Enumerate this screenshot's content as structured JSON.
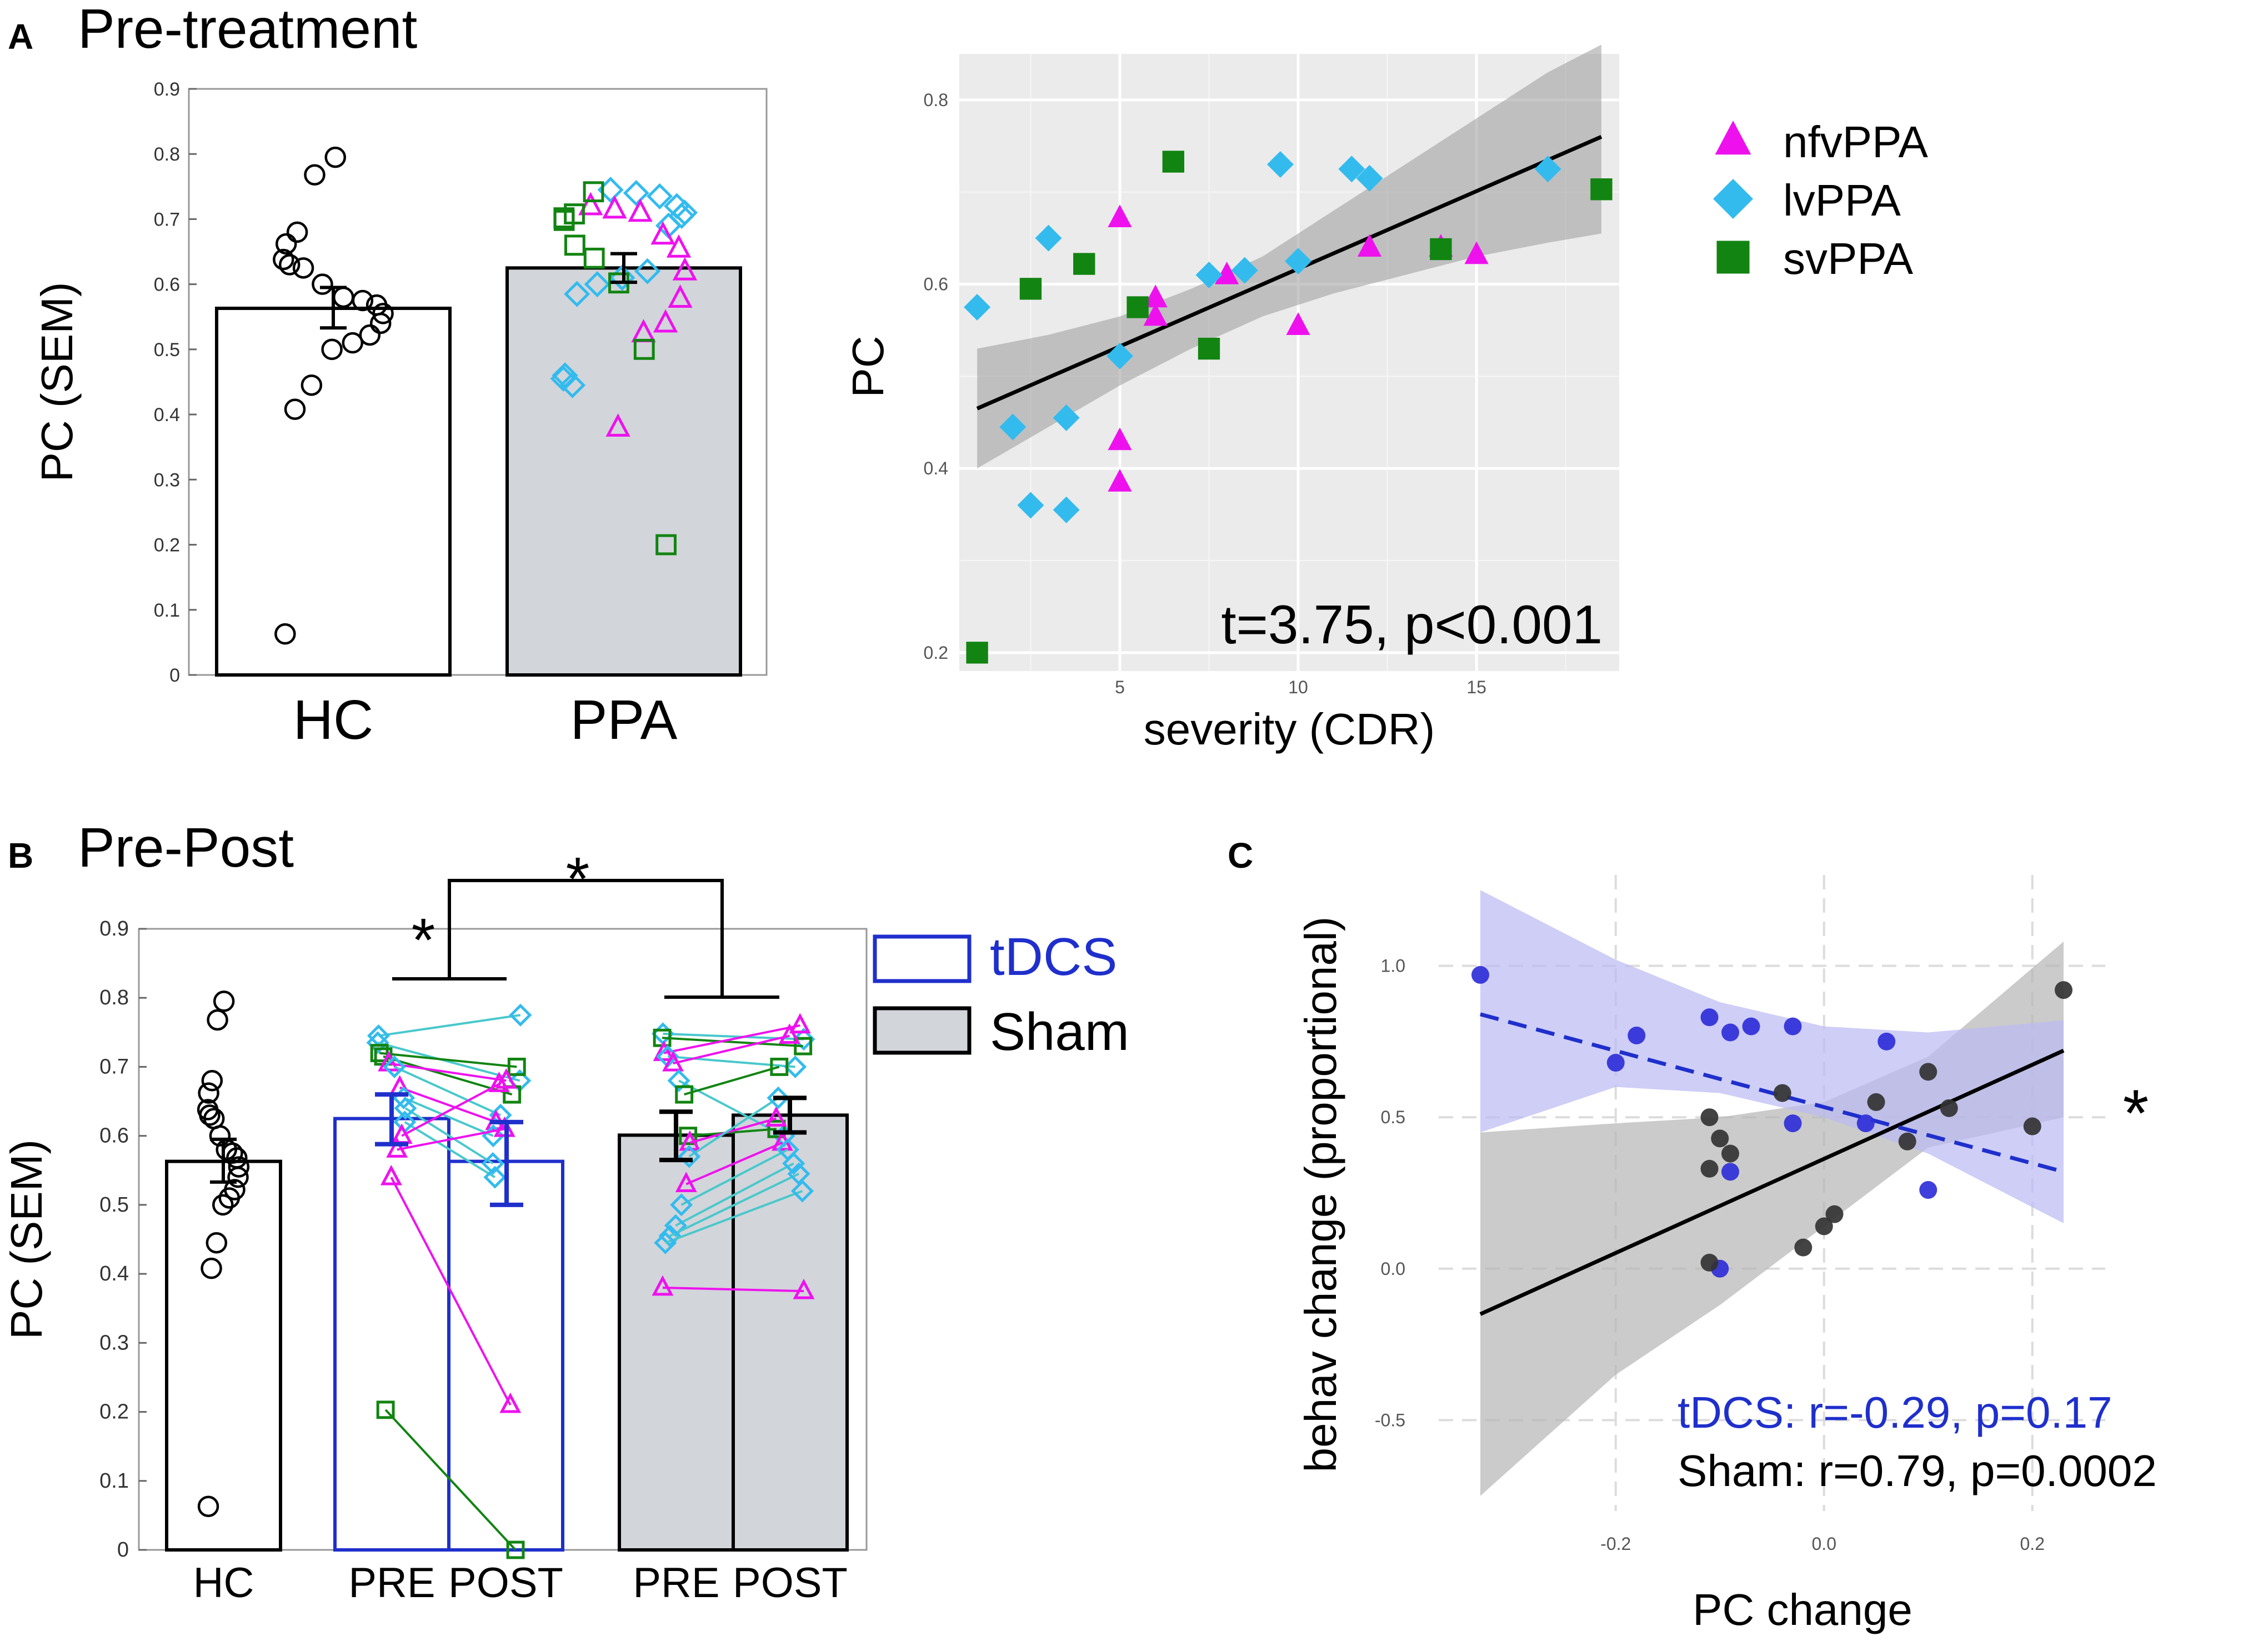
{
  "colors": {
    "nfv": "#ee11ee",
    "lv": "#33bbee",
    "sv": "#128412",
    "tdcs": "#1f2fcc",
    "sham_fill": "#d2d5da",
    "plot_bg": "#ebebeb",
    "line_cyan": "#48c8cc",
    "c_tdcs_dot": "#2f2fd8",
    "c_sham_dot": "#333333",
    "c_tdcs_band": "#b9b9f3",
    "c_sham_band": "#b5b5b5"
  },
  "panel_labels": {
    "a": "A",
    "b": "B",
    "c": "C"
  },
  "titles": {
    "a": "Pre-treatment",
    "b": "Pre-Post"
  },
  "chart_data": [
    {
      "id": "panelA_bar",
      "type": "bar",
      "ylabel": "PC (SEM)",
      "ylim": [
        0,
        0.9
      ],
      "yticks": [
        "0",
        "0.1",
        "0.2",
        "0.3",
        "0.4",
        "0.5",
        "0.6",
        "0.7",
        "0.8",
        "0.9"
      ],
      "categories": [
        "HC",
        "PPA"
      ],
      "values": [
        0.563,
        0.625
      ],
      "errors": [
        [
          0.533,
          0.595
        ],
        [
          0.603,
          0.647
        ]
      ],
      "hc_points": [
        0.795,
        0.768,
        0.68,
        0.662,
        0.638,
        0.63,
        0.625,
        0.6,
        0.58,
        0.575,
        0.568,
        0.555,
        0.54,
        0.522,
        0.51,
        0.5,
        0.445,
        0.408,
        0.063
      ],
      "ppa_points": {
        "nfv": [
          0.72,
          0.715,
          0.71,
          0.675,
          0.655,
          0.62,
          0.578,
          0.54,
          0.525,
          0.38
        ],
        "lv": [
          0.745,
          0.74,
          0.735,
          0.72,
          0.71,
          0.705,
          0.69,
          0.62,
          0.61,
          0.6,
          0.585,
          0.46,
          0.455,
          0.445
        ],
        "sv": [
          0.742,
          0.708,
          0.702,
          0.698,
          0.66,
          0.64,
          0.602,
          0.5,
          0.2
        ]
      }
    },
    {
      "id": "panelA_scatter",
      "type": "scatter",
      "xlabel": "severity (CDR)",
      "ylabel": "PC",
      "xlim": [
        0.5,
        19
      ],
      "ylim": [
        0.18,
        0.85
      ],
      "xticks": [
        "5",
        "10",
        "15"
      ],
      "yticks": [
        "0.2",
        "0.4",
        "0.6",
        "0.8"
      ],
      "annotation": "t=3.75, p<0.001",
      "legend": [
        "nfvPPA",
        "lvPPA",
        "svPPA"
      ],
      "fit": {
        "x": [
          1,
          18.5
        ],
        "y": [
          0.465,
          0.76
        ]
      },
      "band": {
        "x": [
          1,
          3,
          5,
          7,
          9,
          11,
          13,
          15,
          17,
          18.5
        ],
        "lo": [
          0.4,
          0.445,
          0.49,
          0.53,
          0.565,
          0.59,
          0.61,
          0.63,
          0.645,
          0.655
        ],
        "hi": [
          0.53,
          0.545,
          0.565,
          0.595,
          0.63,
          0.68,
          0.73,
          0.78,
          0.83,
          0.86
        ]
      },
      "series": [
        {
          "name": "nfvPPA",
          "x": [
            5,
            6,
            6,
            8,
            10,
            12,
            14,
            15,
            5,
            5
          ],
          "y": [
            0.672,
            0.585,
            0.565,
            0.61,
            0.555,
            0.64,
            0.64,
            0.632,
            0.43,
            0.385
          ]
        },
        {
          "name": "lvPPA",
          "x": [
            1,
            2,
            3,
            3.5,
            5,
            7.5,
            8.5,
            10,
            9.5,
            11.5,
            12,
            17,
            2.5,
            3.5
          ],
          "y": [
            0.575,
            0.445,
            0.65,
            0.455,
            0.522,
            0.61,
            0.615,
            0.625,
            0.73,
            0.725,
            0.715,
            0.725,
            0.36,
            0.355
          ]
        },
        {
          "name": "svPPA",
          "x": [
            1,
            2.5,
            4,
            5.5,
            6.5,
            7.5,
            14,
            18.5
          ],
          "y": [
            0.2,
            0.595,
            0.622,
            0.575,
            0.733,
            0.53,
            0.638,
            0.703
          ]
        }
      ]
    },
    {
      "id": "panelB_bar",
      "type": "bar",
      "ylabel": "PC (SEM)",
      "ylim": [
        0,
        0.9
      ],
      "yticks": [
        "0",
        "0.1",
        "0.2",
        "0.3",
        "0.4",
        "0.5",
        "0.6",
        "0.7",
        "0.8",
        "0.9"
      ],
      "categories": [
        "HC",
        "PRE",
        "POST",
        "PRE",
        "POST"
      ],
      "values": [
        0.563,
        0.625,
        0.563,
        0.601,
        0.63
      ],
      "errors": [
        [
          0.533,
          0.595
        ],
        [
          0.588,
          0.66
        ],
        [
          0.5,
          0.62
        ],
        [
          0.565,
          0.635
        ],
        [
          0.605,
          0.655
        ]
      ],
      "legend": [
        "tDCS",
        "Sham"
      ],
      "significance": "*",
      "hc_points": [
        0.795,
        0.768,
        0.68,
        0.662,
        0.638,
        0.63,
        0.625,
        0.6,
        0.58,
        0.575,
        0.568,
        0.555,
        0.54,
        0.522,
        0.51,
        0.5,
        0.445,
        0.408,
        0.063
      ],
      "tdcs_pairs": [
        {
          "g": "lv",
          "pre": 0.745,
          "post": 0.775
        },
        {
          "g": "lv",
          "pre": 0.735,
          "post": 0.68
        },
        {
          "g": "sv",
          "pre": 0.72,
          "post": 0.7
        },
        {
          "g": "sv",
          "pre": 0.715,
          "post": 0.66
        },
        {
          "g": "nfv",
          "pre": 0.705,
          "post": 0.68
        },
        {
          "g": "lv",
          "pre": 0.7,
          "post": 0.63
        },
        {
          "g": "nfv",
          "pre": 0.67,
          "post": 0.62
        },
        {
          "g": "lv",
          "pre": 0.655,
          "post": 0.6
        },
        {
          "g": "lv",
          "pre": 0.64,
          "post": 0.56
        },
        {
          "g": "lv",
          "pre": 0.62,
          "post": 0.54
        },
        {
          "g": "nfv",
          "pre": 0.6,
          "post": 0.675
        },
        {
          "g": "nfv",
          "pre": 0.58,
          "post": 0.61
        },
        {
          "g": "nfv",
          "pre": 0.54,
          "post": 0.21
        },
        {
          "g": "sv",
          "pre": 0.203,
          "post": 0.0
        }
      ],
      "sham_pairs": [
        {
          "g": "lv",
          "pre": 0.748,
          "post": 0.74
        },
        {
          "g": "sv",
          "pre": 0.742,
          "post": 0.73
        },
        {
          "g": "nfv",
          "pre": 0.72,
          "post": 0.76
        },
        {
          "g": "lv",
          "pre": 0.715,
          "post": 0.7
        },
        {
          "g": "nfv",
          "pre": 0.705,
          "post": 0.745
        },
        {
          "g": "lv",
          "pre": 0.68,
          "post": 0.6
        },
        {
          "g": "sv",
          "pre": 0.66,
          "post": 0.7
        },
        {
          "g": "sv",
          "pre": 0.6,
          "post": 0.61
        },
        {
          "g": "nfv",
          "pre": 0.59,
          "post": 0.625
        },
        {
          "g": "lv",
          "pre": 0.57,
          "post": 0.655
        },
        {
          "g": "nfv",
          "pre": 0.53,
          "post": 0.59
        },
        {
          "g": "lv",
          "pre": 0.5,
          "post": 0.58
        },
        {
          "g": "lv",
          "pre": 0.47,
          "post": 0.56
        },
        {
          "g": "lv",
          "pre": 0.455,
          "post": 0.545
        },
        {
          "g": "lv",
          "pre": 0.445,
          "post": 0.52
        },
        {
          "g": "nfv",
          "pre": 0.38,
          "post": 0.375
        }
      ]
    },
    {
      "id": "panelC_scatter",
      "type": "scatter",
      "xlabel": "PC change",
      "ylabel": "behav  change (proportional)",
      "xlim": [
        -0.37,
        0.27
      ],
      "ylim": [
        -0.8,
        1.3
      ],
      "xticks": [
        "-0.2",
        "0.0",
        "0.2"
      ],
      "yticks": [
        "-0.5",
        "0.0",
        "0.5",
        "1.0"
      ],
      "annotation_tdcs": "tDCS: r=-0.29, p=0.17",
      "annotation_sham": "Sham: r=0.79, p=0.0002",
      "significance": "*",
      "tdcs_fit": {
        "x": [
          -0.33,
          0.23
        ],
        "y": [
          0.84,
          0.32
        ]
      },
      "sham_fit": {
        "x": [
          -0.33,
          0.23
        ],
        "y": [
          -0.15,
          0.72
        ]
      },
      "tdcs_band": {
        "x": [
          -0.33,
          -0.2,
          -0.1,
          0.0,
          0.1,
          0.23
        ],
        "lo": [
          0.45,
          0.6,
          0.58,
          0.5,
          0.38,
          0.15
        ],
        "hi": [
          1.25,
          1.02,
          0.88,
          0.8,
          0.78,
          0.82
        ]
      },
      "sham_band": {
        "x": [
          -0.33,
          -0.2,
          -0.1,
          0.0,
          0.1,
          0.23
        ],
        "lo": [
          -0.75,
          -0.35,
          -0.12,
          0.14,
          0.4,
          0.5
        ],
        "hi": [
          0.45,
          0.48,
          0.5,
          0.55,
          0.7,
          1.08
        ]
      },
      "series": [
        {
          "name": "tDCS",
          "x": [
            -0.33,
            -0.2,
            -0.18,
            -0.11,
            -0.09,
            -0.07,
            -0.03,
            -0.03,
            0.04,
            0.06,
            0.1,
            -0.09,
            -0.1
          ],
          "y": [
            0.97,
            0.68,
            0.77,
            0.83,
            0.78,
            0.8,
            0.8,
            0.48,
            0.48,
            0.75,
            0.26,
            0.32,
            0.0
          ]
        },
        {
          "name": "Sham",
          "x": [
            -0.11,
            -0.1,
            -0.09,
            -0.11,
            -0.11,
            -0.04,
            -0.02,
            0.0,
            0.01,
            0.05,
            0.08,
            0.1,
            0.12,
            0.2,
            0.23
          ],
          "y": [
            0.5,
            0.43,
            0.38,
            0.33,
            0.02,
            0.58,
            0.07,
            0.14,
            0.18,
            0.55,
            0.42,
            0.65,
            0.53,
            0.47,
            0.92
          ]
        }
      ]
    }
  ]
}
